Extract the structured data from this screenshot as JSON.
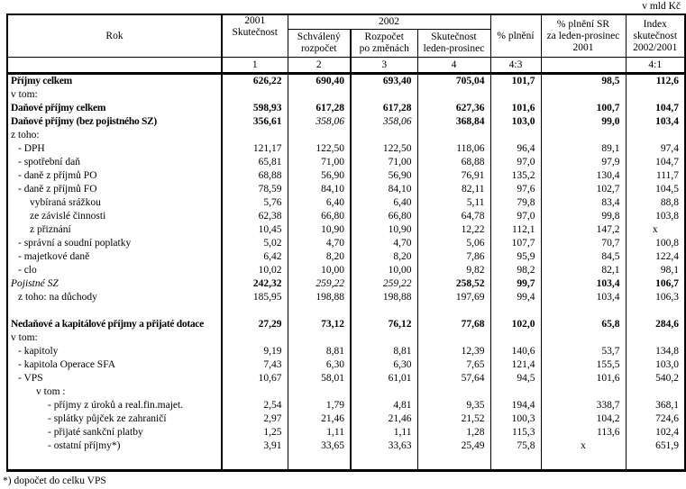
{
  "unit_label": "v mld Kč",
  "footnote": "*) dopočet do celku VPS",
  "table": {
    "header": {
      "rok": "Rok",
      "y2001": [
        "2001",
        "Skutečnost"
      ],
      "y2002": "2002",
      "sub_approved": [
        "Schválený",
        "rozpočet"
      ],
      "sub_amended": [
        "Rozpočet",
        "po změnách"
      ],
      "sub_actual": [
        "Skutečnost",
        "leden-prosinec"
      ],
      "pct": "% plnění",
      "pct_sr": [
        "% plnění SR",
        "za leden-prosinec",
        "2001"
      ],
      "index": [
        "Index",
        "skutečnost",
        "2002/2001"
      ],
      "numbers": [
        "1",
        "2",
        "3",
        "4",
        "4:3",
        "",
        "4:1"
      ]
    },
    "rows": [
      {
        "label": "Příjmy celkem",
        "indent": 0,
        "ls": "b",
        "v": [
          "626,22",
          "690,40",
          "693,40",
          "705,04",
          "101,7",
          "98,5",
          "112,6"
        ],
        "vs": [
          "b",
          "b",
          "b",
          "b",
          "b",
          "b",
          "b"
        ]
      },
      {
        "label": "v tom:",
        "indent": 0,
        "ls": "",
        "v": [
          "",
          "",
          "",
          "",
          "",
          "",
          ""
        ],
        "vs": [
          "",
          "",
          "",
          "",
          "",
          "",
          ""
        ]
      },
      {
        "label": "Daňové příjmy celkem",
        "indent": 0,
        "ls": "b",
        "v": [
          "598,93",
          "617,28",
          "617,28",
          "627,36",
          "101,6",
          "100,7",
          "104,7"
        ],
        "vs": [
          "b",
          "b",
          "b",
          "b",
          "b",
          "b",
          "b"
        ]
      },
      {
        "label": "Daňové příjmy (bez pojistného SZ)",
        "indent": 0,
        "ls": "b",
        "v": [
          "356,61",
          "358,06",
          "358,06",
          "368,84",
          "103,0",
          "99,0",
          "103,4"
        ],
        "vs": [
          "b",
          "i",
          "i",
          "b",
          "b",
          "b",
          "b"
        ]
      },
      {
        "label": "z toho:",
        "indent": 0,
        "ls": "",
        "v": [
          "",
          "",
          "",
          "",
          "",
          "",
          ""
        ],
        "vs": [
          "",
          "",
          "",
          "",
          "",
          "",
          ""
        ]
      },
      {
        "label": "- DPH",
        "indent": 1,
        "ls": "",
        "v": [
          "121,17",
          "122,50",
          "122,50",
          "118,06",
          "96,4",
          "89,1",
          "97,4"
        ],
        "vs": [
          "",
          "",
          "",
          "",
          "",
          "",
          ""
        ]
      },
      {
        "label": "- spotřební daň",
        "indent": 1,
        "ls": "",
        "v": [
          "65,81",
          "71,00",
          "71,00",
          "68,88",
          "97,0",
          "97,9",
          "104,7"
        ],
        "vs": [
          "",
          "",
          "",
          "",
          "",
          "",
          ""
        ]
      },
      {
        "label": "- daně z příjmů PO",
        "indent": 1,
        "ls": "",
        "v": [
          "68,88",
          "56,90",
          "56,90",
          "76,91",
          "135,2",
          "130,4",
          "111,7"
        ],
        "vs": [
          "",
          "",
          "",
          "",
          "",
          "",
          ""
        ]
      },
      {
        "label": "- daně z příjmů FO",
        "indent": 1,
        "ls": "",
        "v": [
          "78,59",
          "84,10",
          "84,10",
          "82,11",
          "97,6",
          "102,7",
          "104,5"
        ],
        "vs": [
          "",
          "",
          "",
          "",
          "",
          "",
          ""
        ]
      },
      {
        "label": "vybíraná srážkou",
        "indent": 2,
        "ls": "",
        "v": [
          "5,76",
          "6,40",
          "6,40",
          "5,11",
          "79,8",
          "83,4",
          "88,8"
        ],
        "vs": [
          "",
          "",
          "",
          "",
          "",
          "",
          ""
        ]
      },
      {
        "label": "ze závislé činnosti",
        "indent": 2,
        "ls": "",
        "v": [
          "62,38",
          "66,80",
          "66,80",
          "64,78",
          "97,0",
          "99,8",
          "103,8"
        ],
        "vs": [
          "",
          "",
          "",
          "",
          "",
          "",
          ""
        ]
      },
      {
        "label": "z přiznání",
        "indent": 2,
        "ls": "",
        "v": [
          "10,45",
          "10,90",
          "10,90",
          "12,22",
          "112,1",
          "147,2",
          "x"
        ],
        "vs": [
          "",
          "",
          "",
          "",
          "",
          "",
          ""
        ]
      },
      {
        "label": "- správní a soudní poplatky",
        "indent": 1,
        "ls": "",
        "v": [
          "5,02",
          "4,70",
          "4,70",
          "5,06",
          "107,7",
          "70,7",
          "100,8"
        ],
        "vs": [
          "",
          "",
          "",
          "",
          "",
          "",
          ""
        ]
      },
      {
        "label": "- majetkové daně",
        "indent": 1,
        "ls": "",
        "v": [
          "6,42",
          "8,20",
          "8,20",
          "7,86",
          "95,9",
          "84,5",
          "122,4"
        ],
        "vs": [
          "",
          "",
          "",
          "",
          "",
          "",
          ""
        ]
      },
      {
        "label": "- clo",
        "indent": 1,
        "ls": "",
        "v": [
          "10,02",
          "10,00",
          "10,00",
          "9,82",
          "98,2",
          "82,1",
          "98,1"
        ],
        "vs": [
          "",
          "",
          "",
          "",
          "",
          "",
          ""
        ]
      },
      {
        "label": "Pojistné SZ",
        "indent": 0,
        "ls": "i",
        "v": [
          "242,32",
          "259,22",
          "259,22",
          "258,52",
          "99,7",
          "103,4",
          "106,7"
        ],
        "vs": [
          "b",
          "i",
          "i",
          "b",
          "b",
          "b",
          "b"
        ]
      },
      {
        "label": "z toho: na důchody",
        "indent": 1,
        "ls": "",
        "v": [
          "185,95",
          "198,88",
          "198,88",
          "197,69",
          "99,4",
          "103,4",
          "106,3"
        ],
        "vs": [
          "",
          "",
          "",
          "",
          "",
          "",
          ""
        ]
      },
      {
        "label": "",
        "indent": 0,
        "ls": "",
        "v": [
          "",
          "",
          "",
          "",
          "",
          "",
          ""
        ],
        "vs": [
          "",
          "",
          "",
          "",
          "",
          "",
          ""
        ]
      },
      {
        "label": "Nedaňové a kapitálové příjmy a přijaté dotace",
        "indent": 0,
        "ls": "b",
        "v": [
          "27,29",
          "73,12",
          "76,12",
          "77,68",
          "102,0",
          "65,8",
          "284,6"
        ],
        "vs": [
          "b",
          "b",
          "b",
          "b",
          "b",
          "b",
          "b"
        ]
      },
      {
        "label": "v tom:",
        "indent": 0,
        "ls": "",
        "v": [
          "",
          "",
          "",
          "",
          "",
          "",
          ""
        ],
        "vs": [
          "",
          "",
          "",
          "",
          "",
          "",
          ""
        ]
      },
      {
        "label": "- kapitoly",
        "indent": 1,
        "ls": "",
        "v": [
          "9,19",
          "8,81",
          "8,81",
          "12,39",
          "140,6",
          "53,7",
          "134,8"
        ],
        "vs": [
          "",
          "",
          "",
          "",
          "",
          "",
          ""
        ]
      },
      {
        "label": "- kapitola Operace SFA",
        "indent": 1,
        "ls": "",
        "v": [
          "7,43",
          "6,30",
          "6,30",
          "7,65",
          "121,4",
          "155,5",
          "103,0"
        ],
        "vs": [
          "",
          "",
          "",
          "",
          "",
          "",
          ""
        ]
      },
      {
        "label": "- VPS",
        "indent": 1,
        "ls": "",
        "v": [
          "10,67",
          "58,01",
          "61,01",
          "57,64",
          "94,5",
          "101,6",
          "540,2"
        ],
        "vs": [
          "",
          "",
          "",
          "",
          "",
          "",
          ""
        ]
      },
      {
        "label": "v tom :",
        "indent": 3,
        "ls": "",
        "v": [
          "",
          "",
          "",
          "",
          "",
          "",
          ""
        ],
        "vs": [
          "",
          "",
          "",
          "",
          "",
          "",
          ""
        ]
      },
      {
        "label": "- příjmy z úroků a real.fin.majet.",
        "indent": 4,
        "ls": "",
        "v": [
          "2,54",
          "1,79",
          "4,81",
          "9,35",
          "194,4",
          "338,7",
          "368,1"
        ],
        "vs": [
          "",
          "",
          "",
          "",
          "",
          "",
          ""
        ]
      },
      {
        "label": "- splátky půjček ze zahraničí",
        "indent": 4,
        "ls": "",
        "v": [
          "2,97",
          "21,46",
          "21,46",
          "21,52",
          "100,3",
          "104,2",
          "724,6"
        ],
        "vs": [
          "",
          "",
          "",
          "",
          "",
          "",
          ""
        ]
      },
      {
        "label": "- přijaté sankční platby",
        "indent": 4,
        "ls": "",
        "v": [
          "1,25",
          "1,11",
          "1,11",
          "1,28",
          "115,3",
          "113,6",
          "102,4"
        ],
        "vs": [
          "",
          "",
          "",
          "",
          "",
          "",
          ""
        ]
      },
      {
        "label": "- ostatní příjmy*)",
        "indent": 4,
        "ls": "",
        "v": [
          "3,91",
          "33,65",
          "33,63",
          "25,49",
          "75,8",
          "x",
          "651,9"
        ],
        "vs": [
          "",
          "",
          "",
          "",
          "",
          "",
          ""
        ]
      }
    ]
  }
}
